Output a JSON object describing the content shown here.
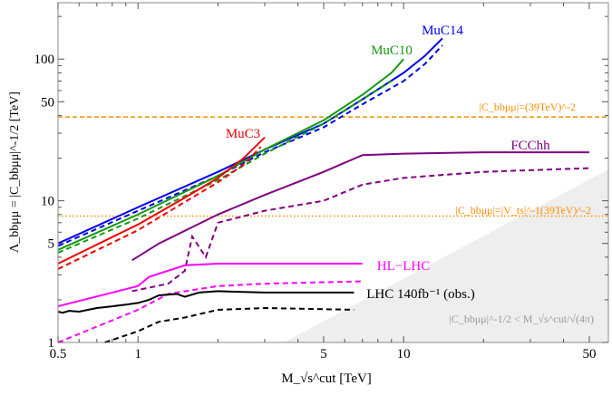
{
  "chart_data": {
    "type": "line",
    "xscale": "log",
    "yscale": "log",
    "xlim": [
      0.5,
      59
    ],
    "ylim": [
      1,
      250
    ],
    "xlabel": "M_√s^cut [TeV]",
    "ylabel": "Λ_bbμμ = |C_bbμμ|^-1/2 [TeV]",
    "xticks": [
      "0.5",
      "1",
      "5",
      "10",
      "50"
    ],
    "yticks": [
      "1",
      "5",
      "10",
      "50",
      "100"
    ],
    "grid": false,
    "series": [
      {
        "name": "MuC14",
        "color": "#0000ee",
        "style": "solid",
        "points": [
          [
            0.5,
            5
          ],
          [
            1,
            9
          ],
          [
            2,
            16
          ],
          [
            3,
            23
          ],
          [
            5,
            35
          ],
          [
            7,
            52
          ],
          [
            10,
            80
          ],
          [
            12,
            105
          ],
          [
            14,
            140
          ]
        ]
      },
      {
        "name": "MuC14",
        "color": "#0000ee",
        "style": "dashed",
        "points": [
          [
            0.5,
            4.8
          ],
          [
            1,
            8.5
          ],
          [
            2,
            15
          ],
          [
            3,
            22
          ],
          [
            5,
            33
          ],
          [
            7,
            48
          ],
          [
            10,
            70
          ],
          [
            12,
            92
          ],
          [
            14,
            125
          ]
        ]
      },
      {
        "name": "MuC10",
        "color": "#119911",
        "style": "solid",
        "points": [
          [
            0.5,
            4.5
          ],
          [
            1,
            8
          ],
          [
            2,
            15
          ],
          [
            3,
            23
          ],
          [
            5,
            37
          ],
          [
            7,
            56
          ],
          [
            9,
            80
          ],
          [
            10,
            100
          ]
        ]
      },
      {
        "name": "MuC10",
        "color": "#119911",
        "style": "dashed",
        "points": [
          [
            0.5,
            4.3
          ],
          [
            1,
            7.5
          ],
          [
            2,
            14
          ],
          [
            3,
            21.5
          ],
          [
            5,
            35
          ],
          [
            7,
            52
          ],
          [
            9,
            70
          ]
        ]
      },
      {
        "name": "MuC3",
        "color": "#ee0000",
        "style": "solid",
        "points": [
          [
            0.5,
            3.6
          ],
          [
            1,
            6.8
          ],
          [
            1.5,
            10.5
          ],
          [
            2,
            14.5
          ],
          [
            2.5,
            20
          ],
          [
            3,
            28
          ]
        ]
      },
      {
        "name": "MuC3",
        "color": "#ee0000",
        "style": "dashed",
        "points": [
          [
            0.5,
            3.3
          ],
          [
            1,
            6.2
          ],
          [
            1.5,
            9.8
          ],
          [
            2,
            13.5
          ],
          [
            2.5,
            18
          ],
          [
            2.9,
            24
          ]
        ]
      },
      {
        "name": "FCChh",
        "color": "#800080",
        "style": "solid",
        "points": [
          [
            0.95,
            3.8
          ],
          [
            1.2,
            5
          ],
          [
            2,
            8
          ],
          [
            3,
            11
          ],
          [
            5,
            16
          ],
          [
            7,
            21
          ],
          [
            10,
            21.5
          ],
          [
            20,
            22
          ],
          [
            50,
            22
          ]
        ]
      },
      {
        "name": "FCChh",
        "color": "#800080",
        "style": "dashed",
        "points": [
          [
            0.95,
            2.3
          ],
          [
            1.3,
            2.6
          ],
          [
            1.5,
            3.2
          ],
          [
            1.6,
            5.6
          ],
          [
            1.8,
            4.0
          ],
          [
            2,
            7
          ],
          [
            3,
            8.5
          ],
          [
            5,
            10
          ],
          [
            7,
            13
          ],
          [
            10,
            14.5
          ],
          [
            20,
            16
          ],
          [
            50,
            17
          ]
        ]
      },
      {
        "name": "HL−LHC",
        "color": "#ff00ff",
        "style": "solid",
        "points": [
          [
            0.5,
            1.8
          ],
          [
            1,
            2.5
          ],
          [
            1.1,
            2.9
          ],
          [
            1.5,
            3.5
          ],
          [
            2,
            3.6
          ],
          [
            7,
            3.6
          ]
        ]
      },
      {
        "name": "HL−LHC",
        "color": "#ff00ff",
        "style": "dashed",
        "points": [
          [
            0.5,
            1.0
          ],
          [
            1,
            1.7
          ],
          [
            1.3,
            2.2
          ],
          [
            2,
            2.5
          ],
          [
            3,
            2.6
          ],
          [
            7,
            2.7
          ]
        ]
      },
      {
        "name": "LHC 140fb⁻¹ (obs.)",
        "color": "#000000",
        "style": "solid",
        "points": [
          [
            0.5,
            1.65
          ],
          [
            0.52,
            1.62
          ],
          [
            0.55,
            1.67
          ],
          [
            0.6,
            1.65
          ],
          [
            0.7,
            1.75
          ],
          [
            0.8,
            1.8
          ],
          [
            0.9,
            1.85
          ],
          [
            1,
            1.9
          ],
          [
            1.1,
            2.0
          ],
          [
            1.2,
            2.15
          ],
          [
            1.4,
            2.2
          ],
          [
            1.5,
            2.1
          ],
          [
            1.7,
            2.25
          ],
          [
            2,
            2.3
          ],
          [
            3,
            2.25
          ],
          [
            6.5,
            2.25
          ]
        ]
      },
      {
        "name": "LHC 140fb⁻¹ (obs.)",
        "color": "#000000",
        "style": "dashed",
        "points": [
          [
            0.75,
            1.0
          ],
          [
            1,
            1.2
          ],
          [
            1.2,
            1.4
          ],
          [
            1.5,
            1.5
          ],
          [
            2,
            1.7
          ],
          [
            3,
            1.75
          ],
          [
            6.5,
            1.7
          ]
        ]
      }
    ],
    "hlines": [
      {
        "y": 39,
        "color": "#ff8c00",
        "style": "dashed",
        "label": "|C_bbμμ|=(39TeV)^-2"
      },
      {
        "y": 7.8,
        "color": "#ff8c00",
        "style": "dotted",
        "label": "|C_bbμμ|=|V_ts|^-1(39TeV)^-2"
      }
    ],
    "shaded_region": {
      "condition": "Λ < M/√(4π)",
      "color": "#eeeeee",
      "label": "|C_bbμμ|^-1/2 < M_√s^cut/√(4π)"
    },
    "labels": [
      "MuC14",
      "MuC10",
      "MuC3",
      "FCChh",
      "HL−LHC",
      "LHC 140fb⁻¹ (obs.)"
    ]
  }
}
